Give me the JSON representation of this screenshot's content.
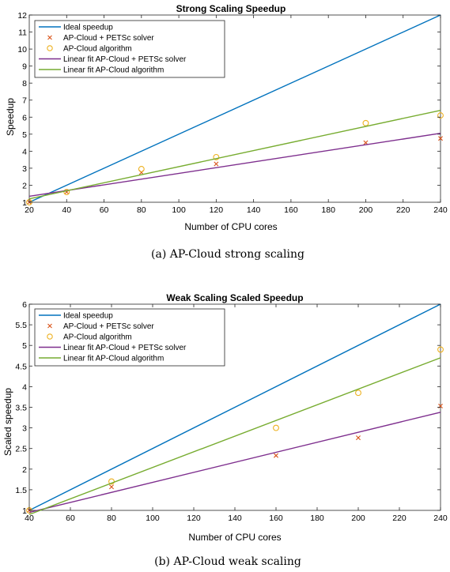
{
  "chart_data": [
    {
      "type": "line",
      "title": "Strong Scaling Speedup",
      "xlabel": "Number of CPU cores",
      "ylabel": "Speedup",
      "xlim": [
        20,
        240
      ],
      "ylim": [
        1,
        12
      ],
      "xticks": [
        20,
        40,
        60,
        80,
        100,
        120,
        140,
        160,
        180,
        200,
        220,
        240
      ],
      "yticks": [
        1,
        2,
        3,
        4,
        5,
        6,
        7,
        8,
        9,
        10,
        11,
        12
      ],
      "legend_position": "top-left",
      "caption": "(a) AP-Cloud strong scaling",
      "series": [
        {
          "name": "Ideal speedup",
          "style": "line",
          "color": "#0072BD",
          "x": [
            20,
            240
          ],
          "y": [
            1,
            12
          ]
        },
        {
          "name": "AP-Cloud + PETSc solver",
          "style": "x-marker",
          "color": "#D95319",
          "x": [
            20,
            40,
            80,
            120,
            200,
            240
          ],
          "y": [
            1.0,
            1.6,
            2.75,
            3.25,
            4.5,
            4.75
          ]
        },
        {
          "name": "AP-Cloud algorithm",
          "style": "o-marker",
          "color": "#EDB120",
          "x": [
            20,
            40,
            80,
            120,
            200,
            240
          ],
          "y": [
            1.0,
            1.6,
            2.95,
            3.65,
            5.65,
            6.1
          ]
        },
        {
          "name": "Linear fit AP-Cloud + PETSc solver",
          "style": "line",
          "color": "#7E2F8E",
          "x": [
            20,
            240
          ],
          "y": [
            1.35,
            5.05
          ]
        },
        {
          "name": "Linear fit AP-Cloud algorithm",
          "style": "line",
          "color": "#77AC30",
          "x": [
            20,
            240
          ],
          "y": [
            1.2,
            6.4
          ]
        }
      ]
    },
    {
      "type": "line",
      "title": "Weak Scaling Scaled Speedup",
      "xlabel": "Number of CPU cores",
      "ylabel": "Scaled speedup",
      "xlim": [
        40,
        240
      ],
      "ylim": [
        1,
        6
      ],
      "xticks": [
        40,
        60,
        80,
        100,
        120,
        140,
        160,
        180,
        200,
        220,
        240
      ],
      "yticks": [
        1,
        1.5,
        2,
        2.5,
        3,
        3.5,
        4,
        4.5,
        5,
        5.5,
        6
      ],
      "legend_position": "top-left",
      "caption": "(b) AP-Cloud weak scaling",
      "series": [
        {
          "name": "Ideal speedup",
          "style": "line",
          "color": "#0072BD",
          "x": [
            40,
            240
          ],
          "y": [
            1,
            6
          ]
        },
        {
          "name": "AP-Cloud + PETSc solver",
          "style": "x-marker",
          "color": "#D95319",
          "x": [
            40,
            80,
            160,
            200,
            240
          ],
          "y": [
            1.0,
            1.57,
            2.33,
            2.76,
            3.53
          ]
        },
        {
          "name": "AP-Cloud algorithm",
          "style": "o-marker",
          "color": "#EDB120",
          "x": [
            40,
            80,
            160,
            200,
            240
          ],
          "y": [
            1.0,
            1.7,
            3.0,
            3.85,
            4.9
          ]
        },
        {
          "name": "Linear fit AP-Cloud + PETSc solver",
          "style": "line",
          "color": "#7E2F8E",
          "x": [
            40,
            240
          ],
          "y": [
            0.95,
            3.38
          ]
        },
        {
          "name": "Linear fit AP-Cloud algorithm",
          "style": "line",
          "color": "#77AC30",
          "x": [
            40,
            240
          ],
          "y": [
            0.9,
            4.7
          ]
        }
      ]
    }
  ]
}
